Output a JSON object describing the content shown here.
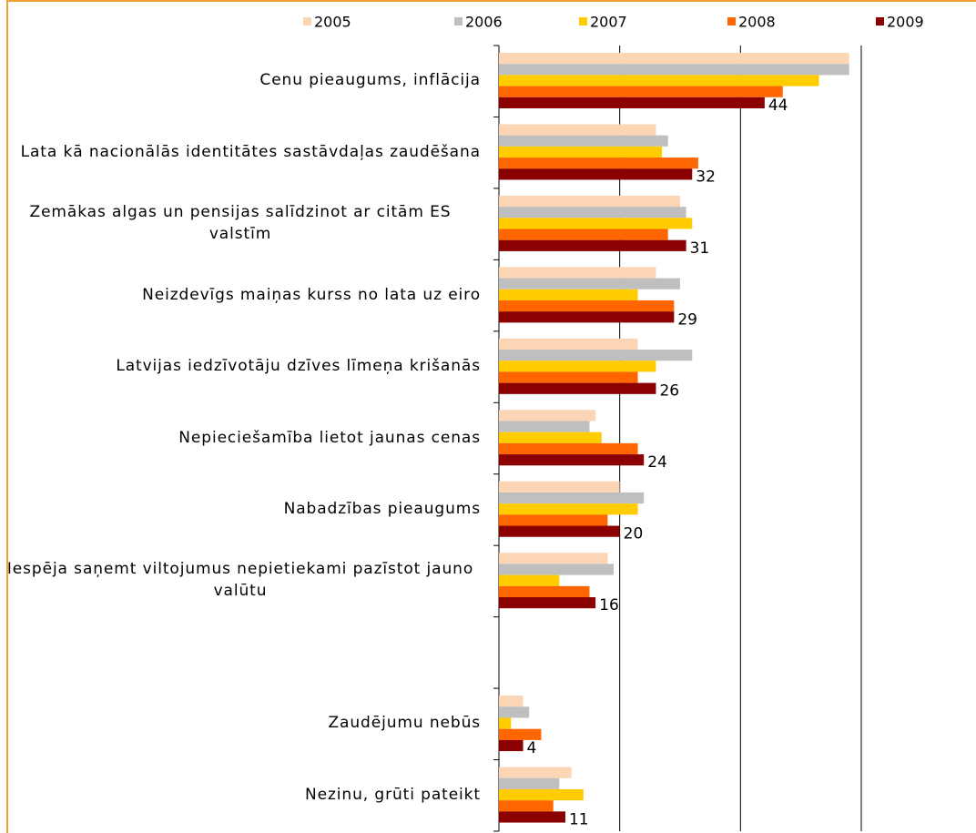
{
  "chart_data": {
    "type": "hbar",
    "categories": [
      "Cenu pieaugums, inflācija",
      "Lata kā nacionālās identitātes sastāvdaļas zaudēšana",
      "Zemākas algas un pensijas salīdzinot ar citām ES valstīm",
      "Neizdevīgs maiņas kurss no lata uz eiro",
      "Latvijas iedzīvotāju dzīves līmeņa krišanās",
      "Nepieciešamība lietot jaunas cenas",
      "Nabadzības pieaugums",
      "Iespēja saņemt viltojumus nepietiekami pazīstot jauno valūtu",
      null,
      "Zaudējumu nebūs",
      "Nezinu, grūti pateikt"
    ],
    "series": [
      {
        "name": "2005",
        "color": "#fcd5b5",
        "values": [
          58,
          26,
          30,
          26,
          23,
          16,
          20,
          18,
          null,
          4,
          12
        ]
      },
      {
        "name": "2006",
        "color": "#bfbfbf",
        "values": [
          58,
          28,
          31,
          30,
          32,
          15,
          24,
          19,
          null,
          5,
          10
        ]
      },
      {
        "name": "2007",
        "color": "#ffcc00",
        "values": [
          53,
          27,
          32,
          23,
          26,
          17,
          23,
          10,
          null,
          2,
          14
        ]
      },
      {
        "name": "2008",
        "color": "#ff6600",
        "values": [
          47,
          33,
          28,
          29,
          23,
          23,
          18,
          15,
          null,
          7,
          9
        ]
      },
      {
        "name": "2009",
        "color": "#8b0000",
        "values": [
          44,
          32,
          31,
          29,
          26,
          24,
          20,
          16,
          null,
          4,
          11
        ],
        "labeled": true
      }
    ],
    "xlim": [
      0,
      79
    ],
    "gridlines": [
      20,
      40,
      60
    ]
  }
}
